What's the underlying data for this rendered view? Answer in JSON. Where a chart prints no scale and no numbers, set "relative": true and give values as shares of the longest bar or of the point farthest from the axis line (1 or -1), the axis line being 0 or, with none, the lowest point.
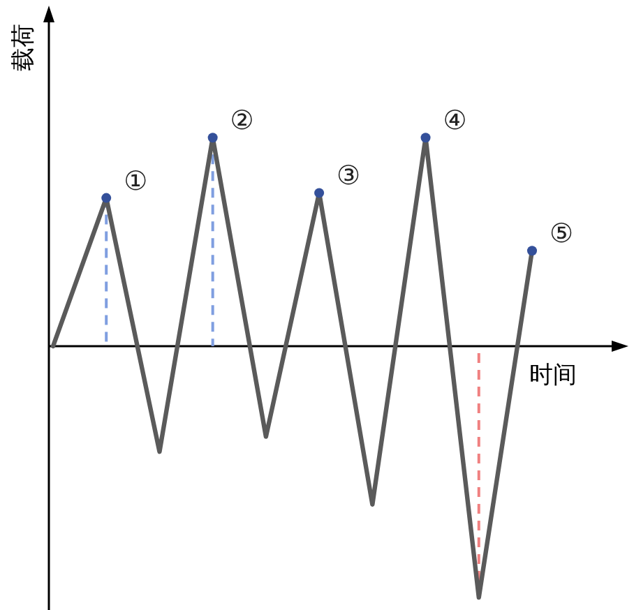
{
  "chart_data": {
    "type": "line",
    "relative": true,
    "xlabel": "时间",
    "ylabel": "载荷",
    "categories": [
      null,
      null,
      null,
      null,
      null,
      null,
      null,
      null,
      null,
      null
    ],
    "series": [
      {
        "color": "#5a5a5a",
        "values": [
          0,
          0.59,
          -0.42,
          0.83,
          -0.36,
          0.61,
          -0.63,
          0.83,
          -1,
          0.38
        ]
      }
    ],
    "annotations": [
      "①",
      "②",
      "③",
      "④",
      "⑤"
    ]
  }
}
